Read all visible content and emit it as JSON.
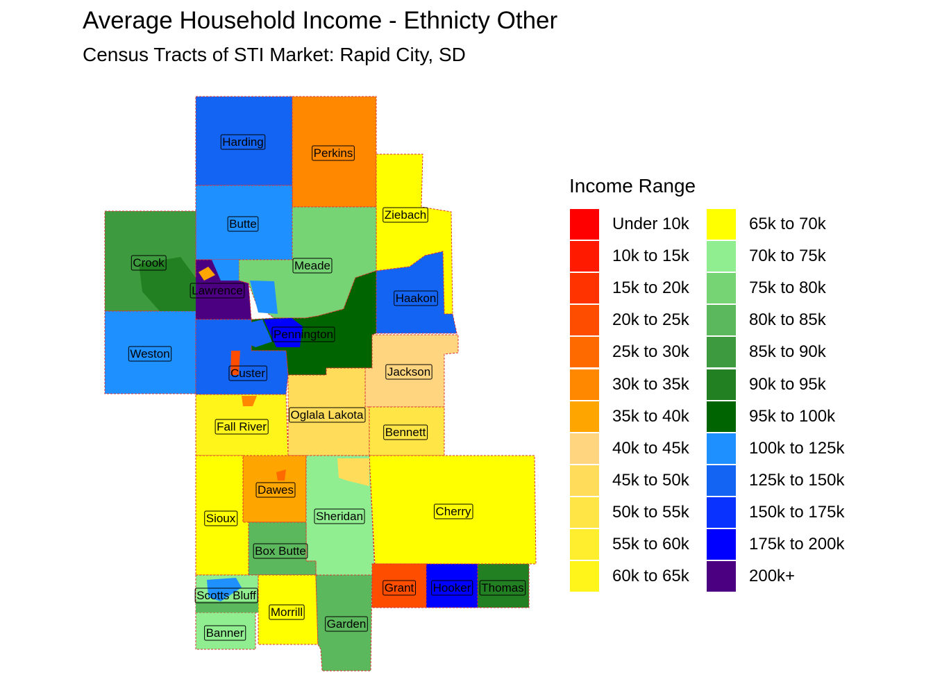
{
  "title": "Average Household Income - Ethnicty Other",
  "subtitle": "Census Tracts of STI Market: Rapid City, SD",
  "legend": {
    "title": "Income Range",
    "items": [
      {
        "label": "Under 10k",
        "color": "#FF0000"
      },
      {
        "label": "10k to 15k",
        "color": "#FF1A00"
      },
      {
        "label": "15k to 20k",
        "color": "#FF3300"
      },
      {
        "label": "20k to 25k",
        "color": "#FF4D00"
      },
      {
        "label": "25k to 30k",
        "color": "#FF6A00"
      },
      {
        "label": "30k to 35k",
        "color": "#FF8800"
      },
      {
        "label": "35k to 40k",
        "color": "#FFA500"
      },
      {
        "label": "40k to 45k",
        "color": "#FFD580"
      },
      {
        "label": "45k to 50k",
        "color": "#FFDD5A"
      },
      {
        "label": "50k to 55k",
        "color": "#FFE545"
      },
      {
        "label": "55k to 60k",
        "color": "#FFEE2E"
      },
      {
        "label": "60k to 65k",
        "color": "#FFF51A"
      },
      {
        "label": "65k to 70k",
        "color": "#FFFF00"
      },
      {
        "label": "70k to 75k",
        "color": "#90EE90"
      },
      {
        "label": "75k to 80k",
        "color": "#76D474"
      },
      {
        "label": "80k to 85k",
        "color": "#5CB85C"
      },
      {
        "label": "85k to 90k",
        "color": "#3E9A3E"
      },
      {
        "label": "90k to 95k",
        "color": "#228022"
      },
      {
        "label": "95k to 100k",
        "color": "#006400"
      },
      {
        "label": "100k to 125k",
        "color": "#1E90FF"
      },
      {
        "label": "125k to 150k",
        "color": "#1464F4"
      },
      {
        "label": "150k to 175k",
        "color": "#0A32FF"
      },
      {
        "label": "175k to 200k",
        "color": "#0000FF"
      },
      {
        "label": "200k+",
        "color": "#4B0082"
      }
    ]
  },
  "counties": [
    {
      "name": "Harding",
      "income": "125k to 150k"
    },
    {
      "name": "Perkins",
      "income": "30k to 35k"
    },
    {
      "name": "Ziebach",
      "income": "65k to 70k"
    },
    {
      "name": "Butte",
      "income": "100k to 125k"
    },
    {
      "name": "Meade",
      "income": "75k to 80k"
    },
    {
      "name": "Crook",
      "income": "85k to 90k"
    },
    {
      "name": "Lawrence",
      "income": "200k+"
    },
    {
      "name": "Haakon",
      "income": "125k to 150k"
    },
    {
      "name": "Weston",
      "income": "100k to 125k"
    },
    {
      "name": "Pennington",
      "income": "95k to 100k"
    },
    {
      "name": "Custer",
      "income": "125k to 150k"
    },
    {
      "name": "Jackson",
      "income": "40k to 45k"
    },
    {
      "name": "Oglala Lakota",
      "income": "45k to 50k"
    },
    {
      "name": "Bennett",
      "income": "50k to 55k"
    },
    {
      "name": "Fall River",
      "income": "60k to 65k"
    },
    {
      "name": "Dawes",
      "income": "35k to 40k"
    },
    {
      "name": "Sheridan",
      "income": "70k to 75k"
    },
    {
      "name": "Cherry",
      "income": "65k to 70k"
    },
    {
      "name": "Sioux",
      "income": "65k to 70k"
    },
    {
      "name": "Box Butte",
      "income": "80k to 85k"
    },
    {
      "name": "Grant",
      "income": "20k to 25k"
    },
    {
      "name": "Hooker",
      "income": "175k to 200k"
    },
    {
      "name": "Thomas",
      "income": "90k to 95k"
    },
    {
      "name": "Scotts Bluff",
      "income": "70k to 75k"
    },
    {
      "name": "Morrill",
      "income": "65k to 70k"
    },
    {
      "name": "Garden",
      "income": "80k to 85k"
    },
    {
      "name": "Banner",
      "income": "70k to 75k"
    }
  ]
}
